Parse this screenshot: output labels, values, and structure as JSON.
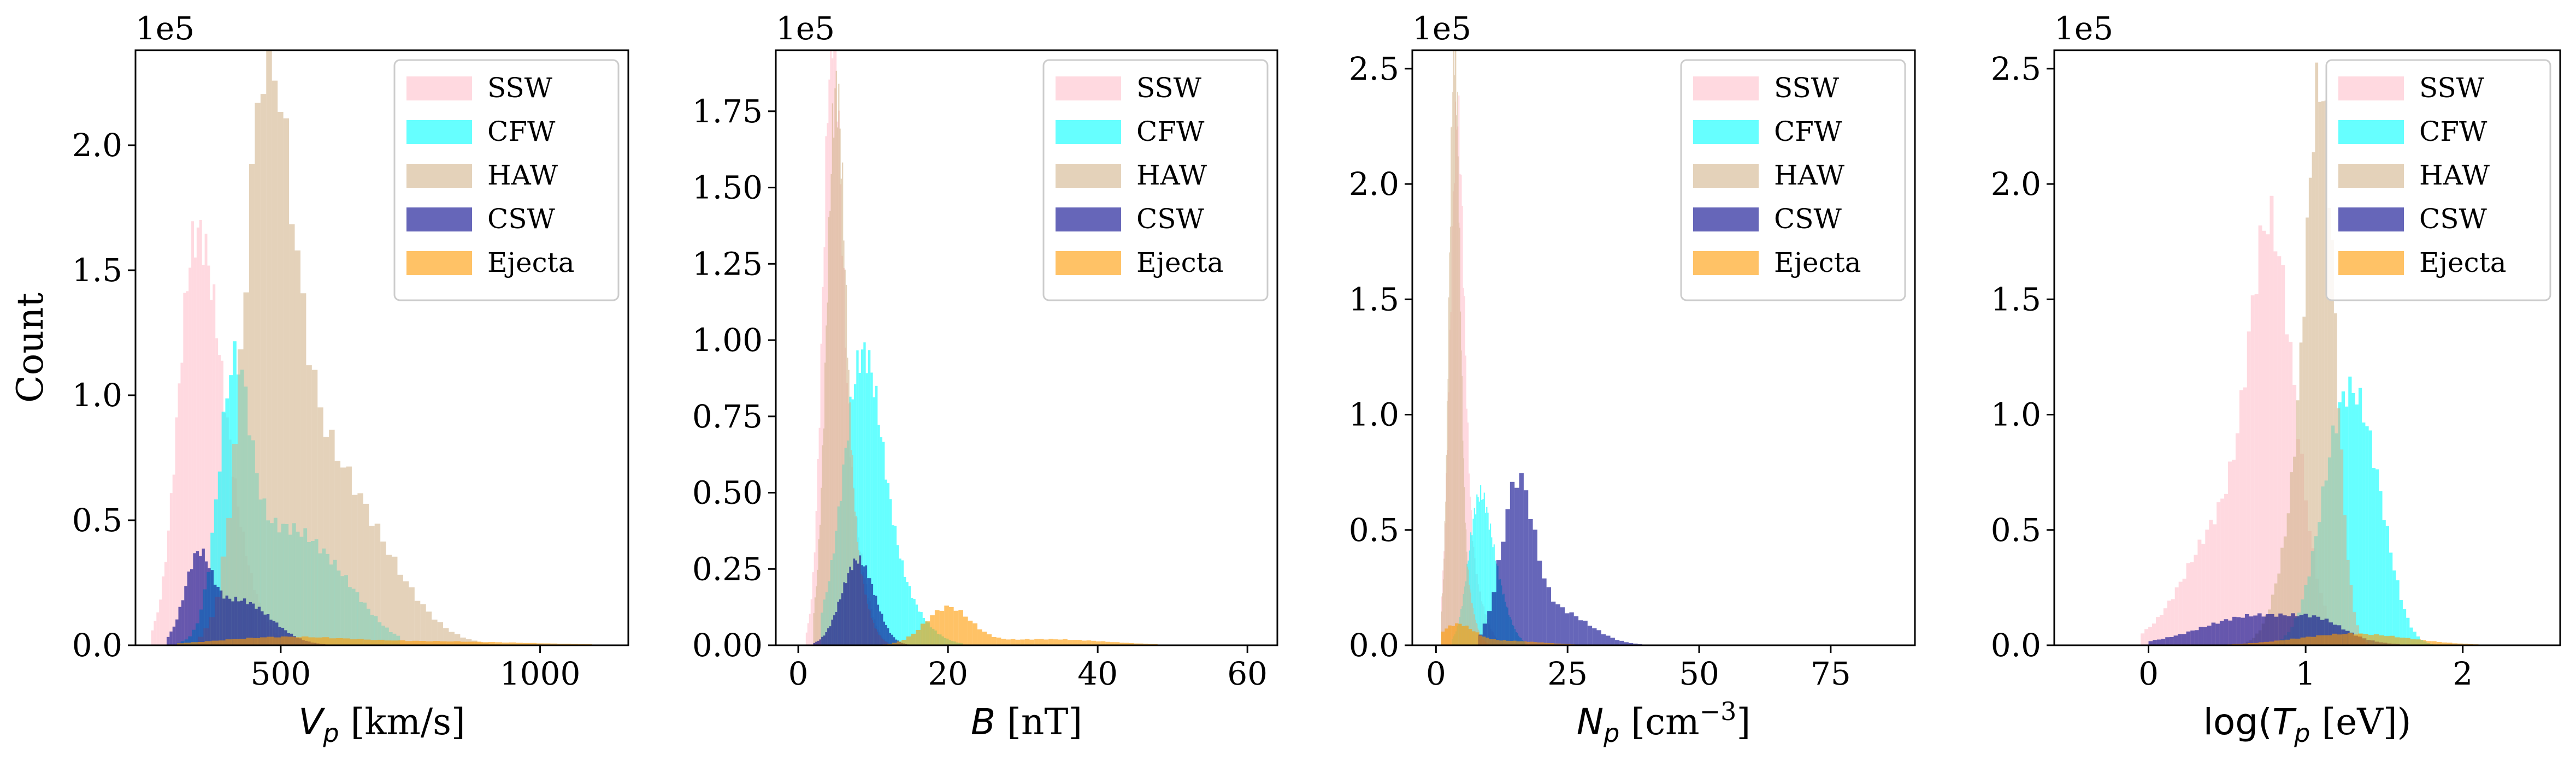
{
  "figure": {
    "y_label": "Count",
    "offset_label": "1e5"
  },
  "legend": {
    "entries": [
      {
        "name": "SSW",
        "color": "#ffc0cb",
        "alpha": 0.6
      },
      {
        "name": "CFW",
        "color": "#00ffff",
        "alpha": 0.6
      },
      {
        "name": "HAW",
        "color": "#d2b48c",
        "alpha": 0.6
      },
      {
        "name": "CSW",
        "color": "#00008b",
        "alpha": 0.6
      },
      {
        "name": "Ejecta",
        "color": "#ff9900",
        "alpha": 0.6
      }
    ]
  },
  "chart_data": [
    {
      "type": "histogram",
      "xlabel_var": "V",
      "xlabel_sub": "p",
      "xlabel_unit": " [km/s]",
      "xlim": [
        220,
        1170
      ],
      "ylim": [
        0,
        2.38
      ],
      "xticks": [
        500,
        1000
      ],
      "yticks": [
        0.0,
        0.5,
        1.0,
        1.5,
        2.0
      ],
      "ytick_labels": [
        "0.0",
        "0.5",
        "1.0",
        "1.5",
        "2.0"
      ],
      "series": [
        {
          "name": "SSW",
          "peaks": [
            [
              330,
              30,
              1.2,
              1.45
            ],
            [
              370,
              45,
              0.6,
              1.2
            ]
          ],
          "range": [
            250,
            560
          ]
        },
        {
          "name": "CFW",
          "peaks": [
            [
              410,
              30,
              0.95,
              1.0
            ],
            [
              500,
              70,
              0.45,
              1.2
            ],
            [
              620,
              60,
              0.12,
              1.0
            ]
          ],
          "range": [
            300,
            730
          ]
        },
        {
          "name": "HAW",
          "peaks": [
            [
              470,
              40,
              1.95,
              1.2
            ],
            [
              560,
              80,
              0.75,
              1.2
            ],
            [
              700,
              80,
              0.15,
              1.0
            ]
          ],
          "range": [
            340,
            1000
          ]
        },
        {
          "name": "CSW",
          "peaks": [
            [
              340,
              25,
              0.3,
              1.0
            ],
            [
              420,
              60,
              0.18,
              1.0
            ]
          ],
          "range": [
            280,
            620
          ]
        },
        {
          "name": "Ejecta",
          "peaks": [
            [
              500,
              120,
              0.03,
              1.0
            ],
            [
              800,
              180,
              0.015,
              1.0
            ]
          ],
          "range": [
            300,
            1100
          ]
        }
      ]
    },
    {
      "type": "histogram",
      "xlabel_var": "B",
      "xlabel_sub": "",
      "xlabel_unit": " [nT]",
      "xlim": [
        -3,
        64
      ],
      "ylim": [
        0,
        1.95
      ],
      "xticks": [
        0,
        20,
        40,
        60
      ],
      "yticks": [
        0.0,
        0.25,
        0.5,
        0.75,
        1.0,
        1.25,
        1.5,
        1.75
      ],
      "ytick_labels": [
        "0.00",
        "0.25",
        "0.50",
        "0.75",
        "1.00",
        "1.25",
        "1.50",
        "1.75"
      ],
      "series": [
        {
          "name": "SSW",
          "peaks": [
            [
              4.5,
              1.2,
              1.75,
              1.0
            ],
            [
              6.5,
              2.0,
              0.45,
              1.0
            ]
          ],
          "range": [
            1,
            14
          ]
        },
        {
          "name": "CFW",
          "peaks": [
            [
              8.5,
              2.5,
              0.75,
              1.0
            ],
            [
              11,
              4,
              0.25,
              1.0
            ]
          ],
          "range": [
            3,
            22
          ]
        },
        {
          "name": "HAW",
          "peaks": [
            [
              5,
              1.2,
              1.55,
              1.0
            ],
            [
              6.5,
              2.0,
              0.35,
              1.0
            ]
          ],
          "range": [
            2,
            12
          ]
        },
        {
          "name": "CSW",
          "peaks": [
            [
              8,
              2.2,
              0.28,
              1.0
            ]
          ],
          "range": [
            2,
            18
          ]
        },
        {
          "name": "Ejecta",
          "peaks": [
            [
              20,
              3,
              0.12,
              1.0
            ],
            [
              33,
              8,
              0.02,
              1.0
            ]
          ],
          "range": [
            10,
            48
          ]
        }
      ]
    },
    {
      "type": "histogram",
      "xlabel_var": "N",
      "xlabel_sub": "p",
      "xlabel_unit": " [cm",
      "xlabel_sup": "−3",
      "xlabel_end": "]",
      "xlim": [
        -4.5,
        91
      ],
      "ylim": [
        0,
        2.58
      ],
      "xticks": [
        0,
        25,
        50,
        75
      ],
      "yticks": [
        0.0,
        0.5,
        1.0,
        1.5,
        2.0,
        2.5
      ],
      "ytick_labels": [
        "0.0",
        "0.5",
        "1.0",
        "1.5",
        "2.0",
        "2.5"
      ],
      "series": [
        {
          "name": "SSW",
          "peaks": [
            [
              4,
              1.3,
              2.05,
              1.0
            ],
            [
              6,
              2.5,
              0.35,
              1.0
            ]
          ],
          "range": [
            1,
            14
          ]
        },
        {
          "name": "CFW",
          "peaks": [
            [
              8,
              2.0,
              0.52,
              1.0
            ],
            [
              11,
              2.5,
              0.25,
              1.0
            ]
          ],
          "range": [
            3,
            17
          ]
        },
        {
          "name": "HAW",
          "peaks": [
            [
              3.5,
              1.0,
              2.4,
              1.0
            ],
            [
              5,
              1.8,
              0.3,
              1.0
            ]
          ],
          "range": [
            1,
            10
          ]
        },
        {
          "name": "CSW",
          "peaks": [
            [
              15.5,
              3.0,
              0.66,
              1.0
            ],
            [
              23,
              6,
              0.15,
              1.0
            ]
          ],
          "range": [
            8,
            60
          ]
        },
        {
          "name": "Ejecta",
          "peaks": [
            [
              4,
              3,
              0.08,
              1.0
            ],
            [
              12,
              8,
              0.02,
              1.0
            ]
          ],
          "range": [
            1,
            40
          ]
        }
      ]
    },
    {
      "type": "histogram",
      "xlabel_var": "log(",
      "xlabel_var2": "T",
      "xlabel_sub": "p",
      "xlabel_unit": " [eV])",
      "xlim": [
        -0.6,
        2.62
      ],
      "ylim": [
        0,
        2.58
      ],
      "xticks": [
        0,
        1,
        2
      ],
      "yticks": [
        0.0,
        0.5,
        1.0,
        1.5,
        2.0,
        2.5
      ],
      "ytick_labels": [
        "0.0",
        "0.5",
        "1.0",
        "1.5",
        "2.0",
        "2.5"
      ],
      "series": [
        {
          "name": "SSW",
          "peaks": [
            [
              0.78,
              0.13,
              1.55,
              1.2
            ],
            [
              0.5,
              0.25,
              0.55,
              1.0
            ]
          ],
          "range": [
            -0.05,
            1.4
          ]
        },
        {
          "name": "CFW",
          "peaks": [
            [
              1.25,
              0.15,
              1.0,
              1.0
            ],
            [
              1.45,
              0.12,
              0.35,
              1.0
            ]
          ],
          "range": [
            0.6,
            1.9
          ]
        },
        {
          "name": "HAW",
          "peaks": [
            [
              1.1,
              0.09,
              2.2,
              1.0
            ],
            [
              0.95,
              0.12,
              0.5,
              1.0
            ]
          ],
          "range": [
            0.6,
            1.8
          ]
        },
        {
          "name": "CSW",
          "peaks": [
            [
              0.7,
              0.35,
              0.13,
              1.0
            ],
            [
              1.1,
              0.15,
              0.05,
              1.0
            ]
          ],
          "range": [
            0.0,
            1.6
          ]
        },
        {
          "name": "Ejecta",
          "peaks": [
            [
              1.3,
              0.35,
              0.05,
              1.0
            ]
          ],
          "range": [
            0.2,
            2.2
          ]
        }
      ]
    }
  ]
}
